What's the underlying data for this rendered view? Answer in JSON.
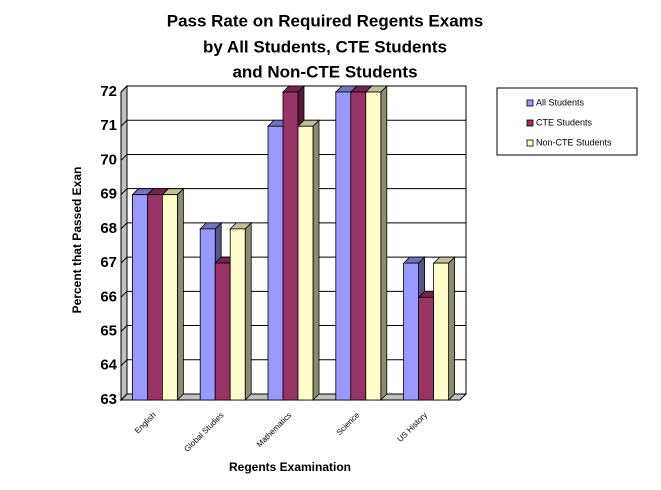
{
  "chart_data": {
    "type": "bar",
    "title": [
      "Pass Rate on Required Regents Exams",
      "by All Students, CTE Students",
      "and Non-CTE Students"
    ],
    "x_label": "Regents Examination",
    "y_label": "Percent that Passed Exan",
    "categories": [
      "English",
      "Global Studies",
      "Mathematics",
      "Science",
      "US History"
    ],
    "series": [
      {
        "name": "All Students",
        "color": "#9999ff",
        "values": [
          69,
          68,
          71,
          72,
          67
        ]
      },
      {
        "name": "CTE Students",
        "color": "#993366",
        "values": [
          69,
          67,
          72,
          72,
          66
        ]
      },
      {
        "name": "Non-CTE Students",
        "color": "#ffffcc",
        "values": [
          69,
          68,
          71,
          72,
          67
        ]
      }
    ],
    "ylim": [
      63,
      72
    ],
    "yticks": [
      63,
      64,
      65,
      66,
      67,
      68,
      69,
      70,
      71,
      72
    ],
    "grid": true,
    "legend": "right"
  }
}
